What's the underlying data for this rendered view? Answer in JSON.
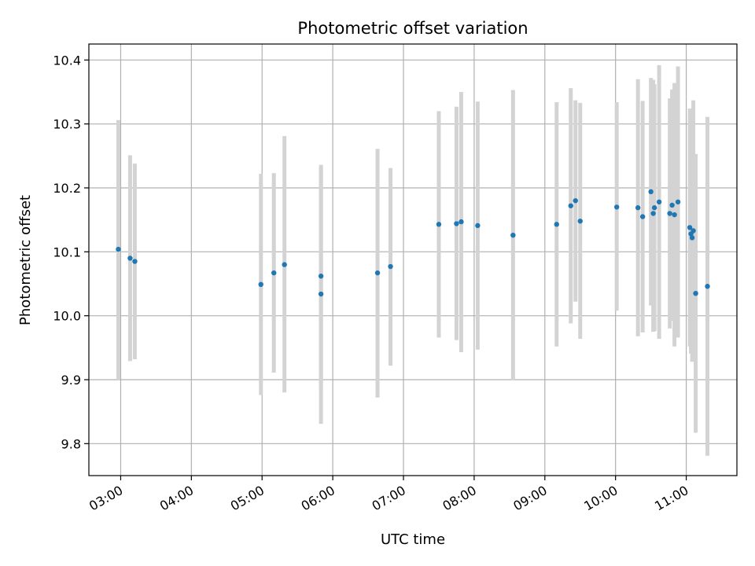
{
  "chart_data": {
    "type": "scatter",
    "title": "Photometric offset variation",
    "xlabel": "UTC time",
    "ylabel": "Photometric offset",
    "x_unit": "UTC time of day (HH:MM)",
    "xlim": [
      "02:33",
      "11:43"
    ],
    "ylim": [
      9.75,
      10.425
    ],
    "xticks": [
      "03:00",
      "04:00",
      "05:00",
      "06:00",
      "07:00",
      "08:00",
      "09:00",
      "10:00",
      "11:00"
    ],
    "yticks": [
      9.8,
      9.9,
      10.0,
      10.1,
      10.2,
      10.3,
      10.4
    ],
    "ytick_labels": [
      "9.8",
      "9.9",
      "10.0",
      "10.1",
      "10.2",
      "10.3",
      "10.4"
    ],
    "grid": true,
    "legend": "none",
    "colors": {
      "marker": "#1f77b4",
      "errorbar": "#d3d3d3",
      "grid": "#b0b0b0"
    },
    "series": [
      {
        "points": [
          {
            "x": "02:58",
            "y": 10.104,
            "lo": 9.9,
            "hi": 10.306
          },
          {
            "x": "03:08",
            "y": 10.09,
            "lo": 9.929,
            "hi": 10.251
          },
          {
            "x": "03:12",
            "y": 10.085,
            "lo": 9.932,
            "hi": 10.238
          },
          {
            "x": "04:59",
            "y": 10.049,
            "lo": 9.876,
            "hi": 10.222
          },
          {
            "x": "05:10",
            "y": 10.067,
            "lo": 9.911,
            "hi": 10.223
          },
          {
            "x": "05:19",
            "y": 10.08,
            "lo": 9.88,
            "hi": 10.281
          },
          {
            "x": "05:50",
            "y": 10.062,
            "lo": 9.888,
            "hi": 10.236
          },
          {
            "x": "05:50",
            "y": 10.034,
            "lo": 9.831,
            "hi": 10.232
          },
          {
            "x": "06:38",
            "y": 10.067,
            "lo": 9.872,
            "hi": 10.261
          },
          {
            "x": "06:49",
            "y": 10.077,
            "lo": 9.922,
            "hi": 10.231
          },
          {
            "x": "07:30",
            "y": 10.143,
            "lo": 9.966,
            "hi": 10.32
          },
          {
            "x": "07:45",
            "y": 10.144,
            "lo": 9.962,
            "hi": 10.327
          },
          {
            "x": "07:49",
            "y": 10.147,
            "lo": 9.943,
            "hi": 10.35
          },
          {
            "x": "08:03",
            "y": 10.141,
            "lo": 9.947,
            "hi": 10.335
          },
          {
            "x": "08:33",
            "y": 10.126,
            "lo": 9.899,
            "hi": 10.353
          },
          {
            "x": "09:10",
            "y": 10.143,
            "lo": 9.952,
            "hi": 10.334
          },
          {
            "x": "09:22",
            "y": 10.172,
            "lo": 9.988,
            "hi": 10.356
          },
          {
            "x": "09:26",
            "y": 10.18,
            "lo": 10.022,
            "hi": 10.337
          },
          {
            "x": "09:30",
            "y": 10.148,
            "lo": 9.964,
            "hi": 10.333
          },
          {
            "x": "10:01",
            "y": 10.17,
            "lo": 10.008,
            "hi": 10.334
          },
          {
            "x": "10:19",
            "y": 10.169,
            "lo": 9.968,
            "hi": 10.37
          },
          {
            "x": "10:23",
            "y": 10.155,
            "lo": 9.974,
            "hi": 10.336
          },
          {
            "x": "10:30",
            "y": 10.194,
            "lo": 10.016,
            "hi": 10.372
          },
          {
            "x": "10:32",
            "y": 10.16,
            "lo": 9.975,
            "hi": 10.369
          },
          {
            "x": "10:33",
            "y": 10.169,
            "lo": 9.976,
            "hi": 10.362
          },
          {
            "x": "10:37",
            "y": 10.178,
            "lo": 9.964,
            "hi": 10.392
          },
          {
            "x": "10:46",
            "y": 10.16,
            "lo": 9.98,
            "hi": 10.34
          },
          {
            "x": "10:48",
            "y": 10.173,
            "lo": 9.992,
            "hi": 10.354
          },
          {
            "x": "10:50",
            "y": 10.158,
            "lo": 9.952,
            "hi": 10.364
          },
          {
            "x": "10:53",
            "y": 10.178,
            "lo": 9.966,
            "hi": 10.39
          },
          {
            "x": "11:03",
            "y": 10.138,
            "lo": 9.952,
            "hi": 10.324
          },
          {
            "x": "11:04",
            "y": 10.128,
            "lo": 9.941,
            "hi": 10.315
          },
          {
            "x": "11:05",
            "y": 10.122,
            "lo": 9.928,
            "hi": 10.316
          },
          {
            "x": "11:06",
            "y": 10.133,
            "lo": 9.929,
            "hi": 10.337
          },
          {
            "x": "11:08",
            "y": 10.035,
            "lo": 9.817,
            "hi": 10.253
          },
          {
            "x": "11:18",
            "y": 10.046,
            "lo": 9.781,
            "hi": 10.311
          }
        ]
      }
    ]
  }
}
